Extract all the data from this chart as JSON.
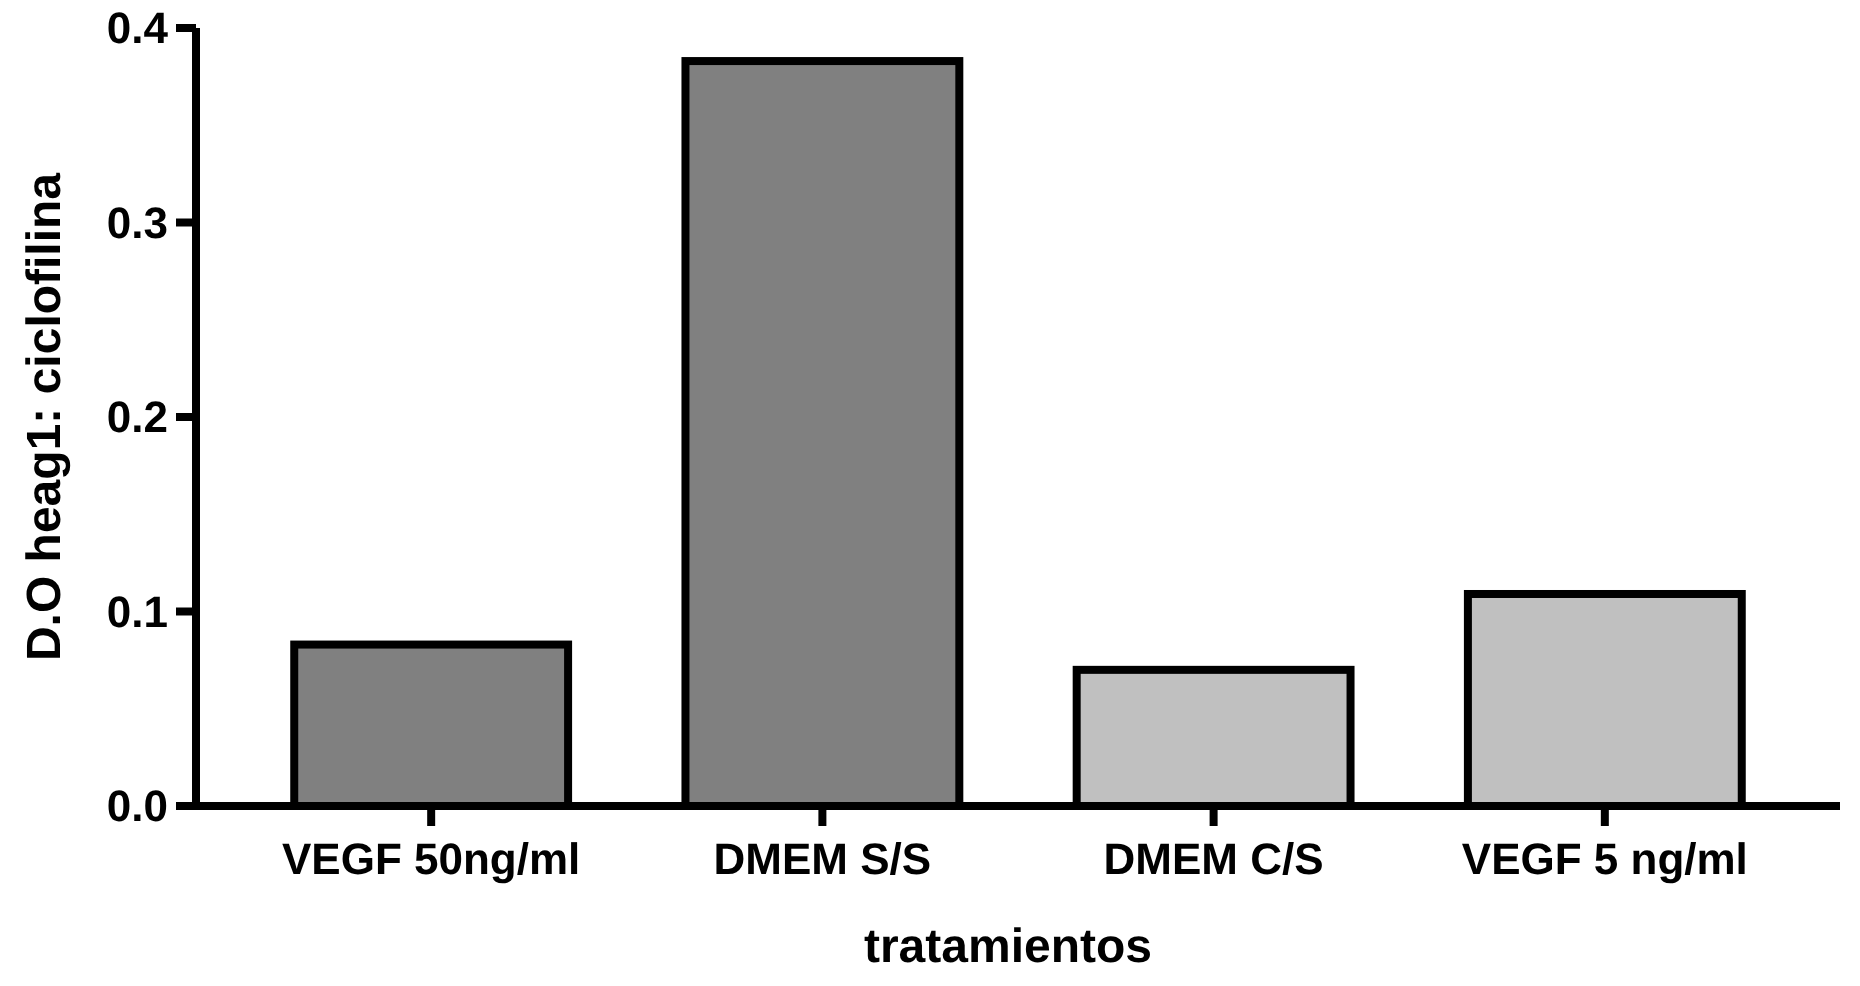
{
  "chart_data": {
    "type": "bar",
    "xlabel": "tratamientos",
    "ylabel": "D.O heag1: ciclofilina",
    "categories": [
      "VEGF 50ng/ml",
      "DMEM S/S",
      "DMEM C/S",
      "VEGF 5 ng/ml"
    ],
    "values": [
      0.083,
      0.383,
      0.07,
      0.109
    ],
    "colors": [
      "#808080",
      "#808080",
      "#c0c0c0",
      "#c0c0c0"
    ],
    "ylim": [
      0,
      0.4
    ],
    "yticks": [
      {
        "value": 0,
        "label": "0.0"
      },
      0.1,
      0.2,
      0.3,
      0.4
    ],
    "grid": false
  }
}
